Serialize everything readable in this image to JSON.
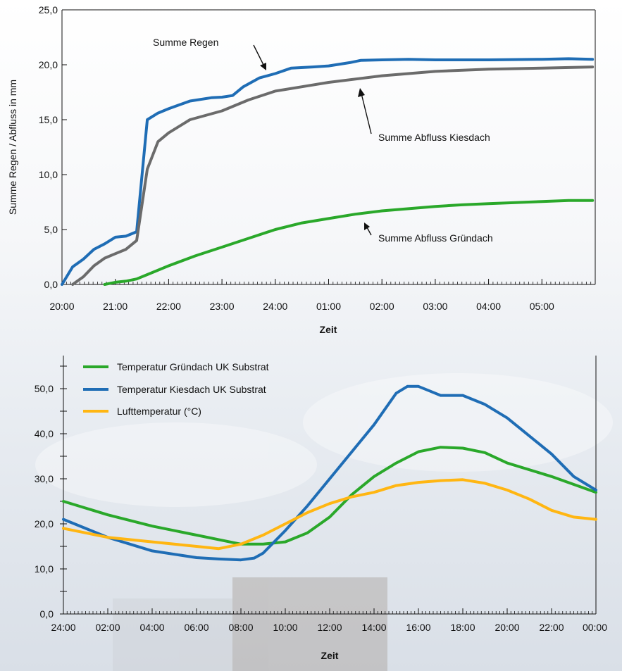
{
  "chart_data": [
    {
      "type": "line",
      "xlabel": "Zeit",
      "ylabel": "Summe Regen / Abfluss in mm",
      "ylim": [
        0,
        25
      ],
      "y_ticks": [
        "0,0",
        "5,0",
        "10,0",
        "15,0",
        "20,0",
        "25,0"
      ],
      "x_tick_labels": [
        "20:00",
        "21:00",
        "22:00",
        "23:00",
        "24:00",
        "01:00",
        "02:00",
        "03:00",
        "04:00",
        "05:00"
      ],
      "x_range_hours": [
        20,
        30
      ],
      "grid": false,
      "annotations": [
        {
          "text": "Summe Regen",
          "series": "Summe Regen"
        },
        {
          "text": "Summe Abfluss Kiesdach",
          "series": "Summe Abfluss Kiesdach"
        },
        {
          "text": "Summe Abfluss Gründach",
          "series": "Summe Abfluss Gründach"
        }
      ],
      "series": [
        {
          "name": "Summe Regen",
          "color": "#1f6db5",
          "x": [
            20.0,
            20.2,
            20.4,
            20.6,
            20.8,
            21.0,
            21.2,
            21.4,
            21.6,
            21.8,
            22.0,
            22.4,
            22.8,
            23.0,
            23.2,
            23.4,
            23.7,
            24.0,
            24.3,
            24.7,
            25.0,
            25.4,
            25.6,
            26.0,
            26.5,
            27.0,
            28.0,
            29.0,
            29.5,
            29.95
          ],
          "values": [
            0.0,
            1.6,
            2.3,
            3.2,
            3.7,
            4.3,
            4.4,
            4.8,
            15.0,
            15.6,
            16.0,
            16.7,
            17.0,
            17.05,
            17.2,
            18.0,
            18.8,
            19.2,
            19.7,
            19.8,
            19.9,
            20.2,
            20.4,
            20.45,
            20.5,
            20.45,
            20.45,
            20.5,
            20.55,
            20.5
          ]
        },
        {
          "name": "Summe Abfluss Kiesdach",
          "color": "#6b6b6b",
          "x": [
            20.2,
            20.4,
            20.6,
            20.8,
            21.0,
            21.2,
            21.4,
            21.6,
            21.8,
            22.0,
            22.4,
            23.0,
            23.5,
            24.0,
            24.5,
            25.0,
            26.0,
            27.0,
            28.0,
            29.0,
            29.95
          ],
          "values": [
            0.0,
            0.7,
            1.7,
            2.4,
            2.8,
            3.2,
            4.0,
            10.5,
            13.0,
            13.8,
            15.0,
            15.8,
            16.8,
            17.6,
            18.0,
            18.4,
            19.0,
            19.4,
            19.6,
            19.7,
            19.8
          ]
        },
        {
          "name": "Summe Abfluss Gründach",
          "color": "#2aa82a",
          "x": [
            20.8,
            21.0,
            21.2,
            21.4,
            21.6,
            22.0,
            22.5,
            23.0,
            23.5,
            24.0,
            24.5,
            25.0,
            25.5,
            26.0,
            26.5,
            27.0,
            27.5,
            28.0,
            28.5,
            29.0,
            29.5,
            29.95
          ],
          "values": [
            0.0,
            0.2,
            0.3,
            0.5,
            0.9,
            1.7,
            2.6,
            3.4,
            4.2,
            5.0,
            5.6,
            6.0,
            6.4,
            6.7,
            6.9,
            7.1,
            7.25,
            7.35,
            7.45,
            7.55,
            7.65,
            7.65
          ]
        }
      ]
    },
    {
      "type": "line",
      "xlabel": "Zeit",
      "ylabel": "",
      "ylim": [
        0,
        55
      ],
      "y_ticks": [
        "0,0",
        "10,0",
        "20,0",
        "30,0",
        "40,0",
        "50,0"
      ],
      "x_tick_labels": [
        "24:00",
        "02:00",
        "04:00",
        "06:00",
        "08:00",
        "10:00",
        "12:00",
        "14:00",
        "16:00",
        "18:00",
        "20:00",
        "22:00",
        "00:00"
      ],
      "x_range_hours": [
        0,
        24
      ],
      "grid": false,
      "legend_position": "top-left",
      "series": [
        {
          "name": "Temperatur Gründach UK Substrat",
          "color": "#2aa82a",
          "x": [
            0,
            2,
            4,
            6,
            7,
            8,
            9,
            10,
            11,
            12,
            13,
            14,
            15,
            16,
            17,
            18,
            19,
            20,
            22,
            24
          ],
          "values": [
            25.0,
            22.0,
            19.5,
            17.5,
            16.5,
            15.5,
            15.5,
            16.0,
            18.0,
            21.5,
            26.5,
            30.5,
            33.5,
            36.0,
            37.0,
            36.8,
            35.8,
            33.5,
            30.5,
            27.0
          ]
        },
        {
          "name": "Temperatur Kiesdach UK Substrat",
          "color": "#1f6db5",
          "x": [
            0,
            2,
            4,
            6,
            7,
            8,
            8.6,
            9,
            10,
            11,
            12,
            13,
            14,
            15,
            15.5,
            16,
            16.5,
            17,
            18,
            19,
            20,
            21,
            22,
            23,
            24
          ],
          "values": [
            21.0,
            17.0,
            14.0,
            12.5,
            12.2,
            12.0,
            12.4,
            13.5,
            18.5,
            24.0,
            30.0,
            36.0,
            42.0,
            49.0,
            50.5,
            50.5,
            49.5,
            48.5,
            48.5,
            46.5,
            43.5,
            39.5,
            35.5,
            30.5,
            27.5
          ]
        },
        {
          "name": "Lufttemperatur (°C)",
          "color": "#ffb612",
          "x": [
            0,
            2,
            4,
            6,
            7,
            8,
            9,
            10,
            11,
            12,
            13,
            14,
            15,
            16,
            17,
            18,
            19,
            20,
            21,
            22,
            23,
            24
          ],
          "values": [
            19.0,
            17.0,
            16.0,
            15.0,
            14.5,
            15.5,
            17.5,
            20.0,
            22.5,
            24.5,
            26.0,
            27.0,
            28.5,
            29.2,
            29.6,
            29.8,
            29.0,
            27.5,
            25.5,
            23.0,
            21.5,
            21.0
          ]
        }
      ]
    }
  ]
}
